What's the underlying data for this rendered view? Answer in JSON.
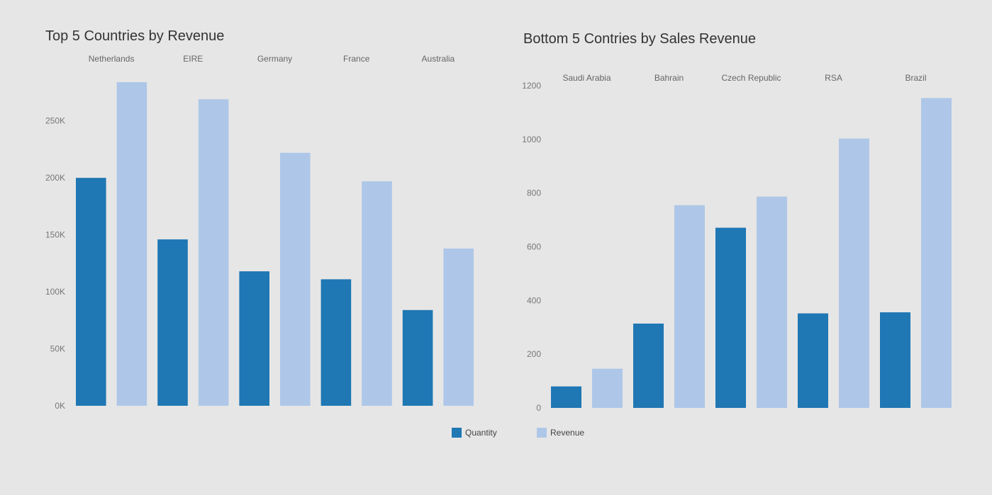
{
  "colors": {
    "background": "#e6e6e6",
    "quantity": "#1f77b4",
    "revenue": "#aec7e8"
  },
  "legend": {
    "quantity_label": "Quantity",
    "revenue_label": "Revenue"
  },
  "chart_data": [
    {
      "type": "bar",
      "title": "Top 5 Countries by Revenue",
      "categories": [
        "Netherlands",
        "EIRE",
        "Germany",
        "France",
        "Australia"
      ],
      "series": [
        {
          "name": "Quantity",
          "values": [
            200000,
            146000,
            118000,
            111000,
            84000
          ]
        },
        {
          "name": "Revenue",
          "values": [
            284000,
            269000,
            222000,
            197000,
            138000
          ]
        }
      ],
      "yticks": [
        "0K",
        "50K",
        "100K",
        "150K",
        "200K",
        "250K"
      ],
      "ylim": [
        0,
        284000
      ],
      "grid": false,
      "legend_position": "bottom"
    },
    {
      "type": "bar",
      "title": "Bottom 5 Contries by Sales Revenue",
      "categories": [
        "Saudi Arabia",
        "Bahrain",
        "Czech Republic",
        "RSA",
        "Brazil"
      ],
      "series": [
        {
          "name": "Quantity",
          "values": [
            80,
            314,
            671,
            352,
            356
          ]
        },
        {
          "name": "Revenue",
          "values": [
            146,
            755,
            787,
            1003,
            1154
          ]
        }
      ],
      "yticks": [
        "0",
        "200",
        "400",
        "600",
        "800",
        "1000",
        "1200"
      ],
      "ylim": [
        0,
        1200
      ],
      "grid": false,
      "legend_position": "bottom"
    }
  ]
}
